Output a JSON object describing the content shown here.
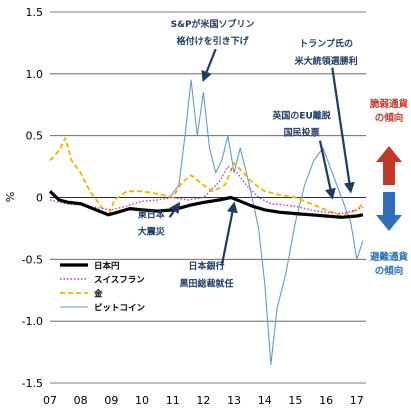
{
  "chart_data": {
    "type": "line",
    "ylabel": "%",
    "xlabel": "",
    "ylim": [
      -1.5,
      1.5
    ],
    "y_ticks": [
      "1.5",
      "1.0",
      "0.5",
      "0",
      "-0.5",
      "-1.0",
      "-1.5"
    ],
    "x_range": [
      2007,
      2017.3
    ],
    "x_ticks": [
      "07",
      "08",
      "09",
      "10",
      "11",
      "12",
      "13",
      "14",
      "15",
      "16",
      "17"
    ],
    "grid": "horizontal",
    "legend_placement": "bottom-left",
    "series": [
      {
        "name": "日本円",
        "style": "solid-thick",
        "color": "#000000",
        "points": [
          [
            2007.0,
            0.05
          ],
          [
            2007.3,
            -0.02
          ],
          [
            2007.6,
            -0.04
          ],
          [
            2008.0,
            -0.05
          ],
          [
            2008.5,
            -0.1
          ],
          [
            2008.9,
            -0.14
          ],
          [
            2009.2,
            -0.12
          ],
          [
            2009.6,
            -0.09
          ],
          [
            2010.0,
            -0.1
          ],
          [
            2010.5,
            -0.11
          ],
          [
            2011.0,
            -0.1
          ],
          [
            2011.3,
            -0.08
          ],
          [
            2011.6,
            -0.06
          ],
          [
            2012.0,
            -0.04
          ],
          [
            2012.5,
            -0.02
          ],
          [
            2012.9,
            0.0
          ],
          [
            2013.2,
            -0.03
          ],
          [
            2013.6,
            -0.07
          ],
          [
            2014.0,
            -0.1
          ],
          [
            2014.5,
            -0.12
          ],
          [
            2015.0,
            -0.13
          ],
          [
            2015.5,
            -0.14
          ],
          [
            2016.0,
            -0.15
          ],
          [
            2016.5,
            -0.16
          ],
          [
            2017.0,
            -0.15
          ],
          [
            2017.2,
            -0.14
          ]
        ]
      },
      {
        "name": "スイスフラン",
        "style": "dotted",
        "color": "#cc33cc",
        "points": [
          [
            2007.0,
            -0.02
          ],
          [
            2007.5,
            -0.05
          ],
          [
            2008.0,
            -0.06
          ],
          [
            2008.5,
            -0.08
          ],
          [
            2009.0,
            -0.1
          ],
          [
            2009.5,
            -0.07
          ],
          [
            2010.0,
            -0.03
          ],
          [
            2010.5,
            -0.02
          ],
          [
            2011.0,
            0.0
          ],
          [
            2011.5,
            -0.02
          ],
          [
            2012.0,
            0.0
          ],
          [
            2012.5,
            0.12
          ],
          [
            2012.8,
            0.25
          ],
          [
            2013.1,
            0.2
          ],
          [
            2013.4,
            0.1
          ],
          [
            2013.8,
            0.0
          ],
          [
            2014.2,
            -0.05
          ],
          [
            2014.6,
            -0.06
          ],
          [
            2015.0,
            -0.07
          ],
          [
            2015.5,
            -0.1
          ],
          [
            2016.0,
            -0.12
          ],
          [
            2016.5,
            -0.13
          ],
          [
            2017.0,
            -0.1
          ],
          [
            2017.2,
            -0.08
          ]
        ]
      },
      {
        "name": "金",
        "style": "dashed",
        "color": "#f0b400",
        "points": [
          [
            2007.0,
            0.3
          ],
          [
            2007.3,
            0.38
          ],
          [
            2007.5,
            0.48
          ],
          [
            2007.7,
            0.3
          ],
          [
            2008.0,
            0.2
          ],
          [
            2008.3,
            0.05
          ],
          [
            2008.6,
            -0.05
          ],
          [
            2008.9,
            -0.15
          ],
          [
            2009.1,
            -0.02
          ],
          [
            2009.5,
            0.05
          ],
          [
            2010.0,
            0.05
          ],
          [
            2010.5,
            0.03
          ],
          [
            2011.0,
            0.0
          ],
          [
            2011.3,
            0.12
          ],
          [
            2011.6,
            0.18
          ],
          [
            2012.0,
            0.1
          ],
          [
            2012.3,
            0.05
          ],
          [
            2012.7,
            0.1
          ],
          [
            2013.0,
            0.28
          ],
          [
            2013.3,
            0.2
          ],
          [
            2013.6,
            0.12
          ],
          [
            2014.0,
            0.05
          ],
          [
            2014.5,
            0.02
          ],
          [
            2015.0,
            0.0
          ],
          [
            2015.5,
            -0.05
          ],
          [
            2016.0,
            -0.1
          ],
          [
            2016.5,
            -0.15
          ],
          [
            2017.0,
            -0.1
          ],
          [
            2017.2,
            -0.05
          ]
        ]
      },
      {
        "name": "ビットコイン",
        "style": "solid-thin",
        "color": "#6699d4",
        "points": [
          [
            2010.9,
            0.0
          ],
          [
            2011.2,
            0.1
          ],
          [
            2011.4,
            0.5
          ],
          [
            2011.6,
            0.95
          ],
          [
            2011.8,
            0.5
          ],
          [
            2012.0,
            0.85
          ],
          [
            2012.2,
            0.4
          ],
          [
            2012.4,
            0.2
          ],
          [
            2012.6,
            0.3
          ],
          [
            2012.8,
            0.5
          ],
          [
            2013.0,
            0.2
          ],
          [
            2013.2,
            0.4
          ],
          [
            2013.5,
            0.1
          ],
          [
            2013.8,
            -0.25
          ],
          [
            2014.0,
            -0.7
          ],
          [
            2014.2,
            -1.35
          ],
          [
            2014.4,
            -0.9
          ],
          [
            2014.7,
            -0.6
          ],
          [
            2015.0,
            -0.2
          ],
          [
            2015.3,
            0.1
          ],
          [
            2015.6,
            0.3
          ],
          [
            2015.9,
            0.4
          ],
          [
            2016.2,
            0.2
          ],
          [
            2016.5,
            0.0
          ],
          [
            2016.8,
            -0.2
          ],
          [
            2017.0,
            -0.5
          ],
          [
            2017.2,
            -0.35
          ]
        ]
      }
    ],
    "annotations": [
      {
        "text": "S&Pが米国ソブリン",
        "x": 2012.3,
        "y": 1.38
      },
      {
        "text": "格付けを引き下げ",
        "x": 2012.3,
        "y": 1.24
      },
      {
        "text": "トランプ氏の",
        "x": 2016.0,
        "y": 1.22
      },
      {
        "text": "米大統領選勝利",
        "x": 2016.0,
        "y": 1.08
      },
      {
        "text": "英国のEU離脱",
        "x": 2015.2,
        "y": 0.64
      },
      {
        "text": "国民投票",
        "x": 2015.2,
        "y": 0.5
      },
      {
        "text": "東日本",
        "x": 2010.3,
        "y": -0.16
      },
      {
        "text": "大震災",
        "x": 2010.3,
        "y": -0.3
      },
      {
        "text": "日本銀行",
        "x": 2012.1,
        "y": -0.58
      },
      {
        "text": "黒田総裁就任",
        "x": 2012.1,
        "y": -0.72
      }
    ],
    "arrows": [
      {
        "from": [
          2012.4,
          1.2
        ],
        "to": [
          2012.0,
          0.95
        ]
      },
      {
        "from": [
          2016.2,
          1.05
        ],
        "to": [
          2016.8,
          0.05
        ]
      },
      {
        "from": [
          2015.8,
          0.46
        ],
        "to": [
          2016.2,
          0.0
        ]
      },
      {
        "from": [
          2010.9,
          -0.16
        ],
        "to": [
          2011.2,
          -0.05
        ]
      },
      {
        "from": [
          2012.6,
          -0.55
        ],
        "to": [
          2013.0,
          -0.05
        ]
      }
    ],
    "side_labels": {
      "risk_on_line1": "脆弱通貨",
      "risk_on_line2": "の傾向",
      "safe_line1": "避難通貨",
      "safe_line2": "の傾向"
    },
    "colors": {
      "risk_on": "#c0392b",
      "safe": "#2e6fb7"
    }
  }
}
